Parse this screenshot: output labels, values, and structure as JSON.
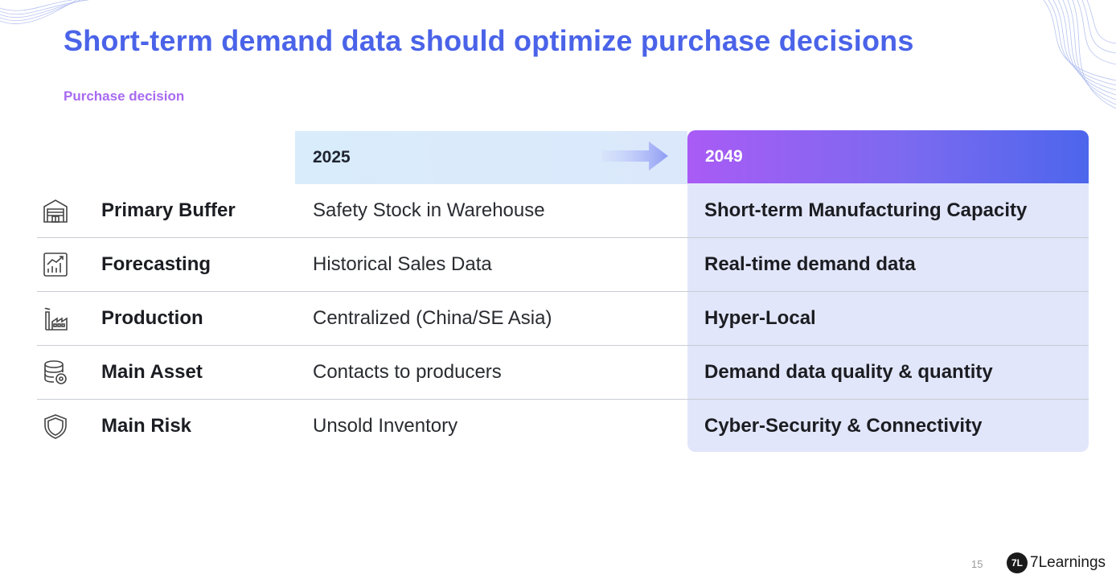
{
  "slide": {
    "title": "Short-term demand data should optimize purchase decisions",
    "subtitle": "Purchase decision",
    "page_number": "15",
    "logo": {
      "mark": "7L",
      "text": "7Learnings"
    }
  },
  "colors": {
    "title": "#4A63E8",
    "subtitle": "#A86AF0",
    "accent_start": "#A95BF5",
    "accent_end": "#4C66EC"
  },
  "table": {
    "col_2025": "2025",
    "col_2049": "2049",
    "rows": [
      {
        "icon": "warehouse-icon",
        "category": "Primary Buffer",
        "value_2025": "Safety Stock in Warehouse",
        "value_2049": "Short-term Manufacturing Capacity"
      },
      {
        "icon": "chart-icon",
        "category": "Forecasting",
        "value_2025": "Historical Sales Data",
        "value_2049": "Real-time demand data"
      },
      {
        "icon": "factory-icon",
        "category": "Production",
        "value_2025": "Centralized (China/SE Asia)",
        "value_2049": "Hyper-Local"
      },
      {
        "icon": "database-icon",
        "category": "Main Asset",
        "value_2025": "Contacts to producers",
        "value_2049": "Demand data quality & quantity"
      },
      {
        "icon": "shield-icon",
        "category": "Main Risk",
        "value_2025": "Unsold Inventory",
        "value_2049": "Cyber-Security & Connectivity"
      }
    ]
  }
}
